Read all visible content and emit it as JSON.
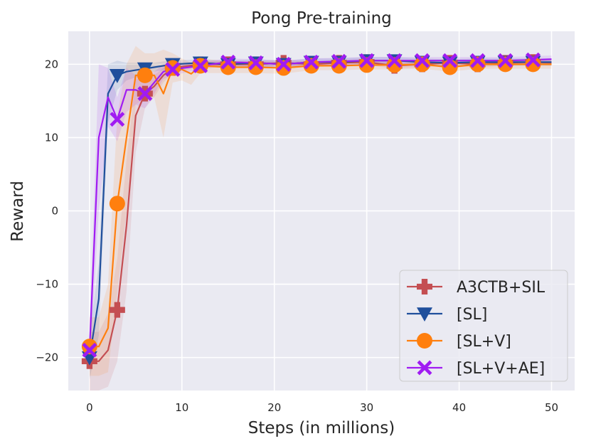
{
  "chart_data": {
    "type": "line",
    "title": "Pong Pre-training",
    "xlabel": "Steps (in millions)",
    "ylabel": "Reward",
    "xlim": [
      -2.3,
      52.5
    ],
    "ylim": [
      -24.5,
      24.5
    ],
    "xticks": [
      0,
      10,
      20,
      30,
      40,
      50
    ],
    "yticks": [
      -20,
      -10,
      0,
      10,
      20
    ],
    "xtick_labels": [
      "0",
      "10",
      "20",
      "30",
      "40",
      "50"
    ],
    "ytick_labels": [
      "−20",
      "−10",
      "0",
      "10",
      "20"
    ],
    "grid": true,
    "legend_position": "bottom-right",
    "series": [
      {
        "name": "A3CTB+SIL",
        "color": "#c44e52",
        "marker": "plus",
        "x": [
          0,
          1,
          2,
          3,
          4,
          5,
          6,
          7,
          8,
          9,
          12,
          15,
          18,
          21,
          24,
          27,
          30,
          33,
          36,
          39,
          42,
          45,
          48,
          50
        ],
        "y": [
          -20.5,
          -20.5,
          -19,
          -13.5,
          -2,
          13,
          16,
          17,
          18.5,
          19.5,
          20,
          20,
          20,
          20.2,
          20,
          20.2,
          20.3,
          19.8,
          20,
          20.2,
          20,
          20.2,
          20.3,
          20.2
        ],
        "band": [
          4,
          4,
          5,
          7,
          9,
          5,
          2,
          1.5,
          1,
          0.6,
          0.4,
          0.4,
          0.4,
          0.4,
          0.4,
          0.4,
          0.4,
          0.4,
          0.4,
          0.4,
          0.4,
          0.4,
          0.4,
          0.4
        ],
        "marker_x": [
          0,
          3,
          6,
          9,
          12,
          15,
          18,
          21,
          24,
          27,
          30,
          33,
          36,
          39,
          42,
          45,
          48
        ],
        "marker_y": [
          -20.5,
          -13.5,
          16,
          19.5,
          20,
          20,
          20,
          20.2,
          20,
          20.2,
          20.3,
          19.8,
          20,
          20.2,
          20,
          20.2,
          20.3
        ]
      },
      {
        "name": "[SL]",
        "color": "#1f4f9c",
        "marker": "triangle-down",
        "x": [
          0,
          1,
          2,
          3,
          4,
          5,
          6,
          7,
          8,
          9,
          12,
          15,
          18,
          21,
          24,
          27,
          30,
          33,
          36,
          39,
          42,
          45,
          48,
          50
        ],
        "y": [
          -20,
          -12,
          16,
          18.5,
          19,
          19.2,
          19.4,
          19.6,
          19.8,
          20,
          20.2,
          20,
          20.2,
          20,
          20.3,
          20.3,
          20.5,
          20.5,
          20.3,
          20.2,
          20.3,
          20.3,
          20.3,
          20.3
        ],
        "band": [
          3,
          5,
          4,
          2,
          1.2,
          1,
          0.8,
          0.6,
          0.6,
          0.5,
          0.5,
          0.5,
          0.5,
          0.5,
          0.5,
          0.5,
          0.5,
          0.5,
          0.5,
          0.5,
          0.5,
          0.5,
          0.5,
          0.5
        ],
        "marker_x": [
          0,
          3,
          6,
          9,
          12,
          15,
          18,
          21,
          24,
          27,
          30,
          33,
          36,
          39,
          42,
          45,
          48
        ],
        "marker_y": [
          -20,
          18.5,
          19.4,
          20,
          20.2,
          20,
          20.2,
          20,
          20.3,
          20.3,
          20.5,
          20.5,
          20.3,
          20.2,
          20.3,
          20.3,
          20.3
        ]
      },
      {
        "name": "[SL+V]",
        "color": "#ff7f0e",
        "marker": "circle",
        "x": [
          0,
          1,
          2,
          3,
          4,
          5,
          6,
          7,
          8,
          9,
          10,
          11,
          12,
          15,
          18,
          21,
          24,
          27,
          30,
          33,
          36,
          39,
          42,
          45,
          48,
          50
        ],
        "y": [
          -18.5,
          -18.5,
          -16,
          1,
          10,
          18.5,
          18.5,
          18.5,
          16,
          19.5,
          19.3,
          18.7,
          19.8,
          19.6,
          19.6,
          19.5,
          19.8,
          19.8,
          19.9,
          19.9,
          20,
          19.6,
          20,
          20,
          20,
          20
        ],
        "band": [
          4,
          4,
          6,
          12,
          10,
          4,
          3,
          3,
          6,
          2,
          1.5,
          1.5,
          1,
          0.8,
          0.8,
          0.8,
          0.6,
          0.6,
          0.6,
          0.6,
          0.6,
          0.6,
          0.6,
          0.6,
          0.6,
          0.6
        ],
        "marker_x": [
          0,
          3,
          6,
          9,
          12,
          15,
          18,
          21,
          24,
          27,
          30,
          33,
          36,
          39,
          42,
          45,
          48
        ],
        "marker_y": [
          -18.5,
          1,
          18.5,
          19.5,
          19.8,
          19.6,
          19.6,
          19.5,
          19.8,
          19.8,
          19.9,
          19.9,
          20,
          19.6,
          20,
          20,
          20
        ]
      },
      {
        "name": "[SL+V+AE]",
        "color": "#a01bf2",
        "marker": "x",
        "x": [
          0,
          1,
          2,
          3,
          4,
          5,
          6,
          7,
          8,
          9,
          12,
          15,
          18,
          21,
          24,
          27,
          30,
          33,
          36,
          39,
          42,
          45,
          48,
          50
        ],
        "y": [
          -19,
          10,
          15.5,
          12.5,
          16.5,
          16.5,
          16,
          17.5,
          19,
          19.3,
          19.8,
          20.3,
          20.2,
          20,
          20.3,
          20.4,
          20.5,
          20.5,
          20.5,
          20.5,
          20.5,
          20.5,
          20.6,
          20.7
        ],
        "band": [
          3,
          10,
          4,
          3,
          3,
          2,
          2,
          1.5,
          1,
          0.8,
          0.5,
          0.5,
          0.5,
          0.5,
          0.5,
          0.5,
          0.5,
          0.5,
          0.5,
          0.5,
          0.5,
          0.5,
          0.5,
          0.5
        ],
        "marker_x": [
          0,
          3,
          6,
          9,
          12,
          15,
          18,
          21,
          24,
          27,
          30,
          33,
          36,
          39,
          42,
          45,
          48
        ],
        "marker_y": [
          -19,
          12.5,
          16,
          19.3,
          19.8,
          20.3,
          20.2,
          20,
          20.3,
          20.4,
          20.5,
          20.5,
          20.5,
          20.5,
          20.5,
          20.5,
          20.6
        ]
      }
    ]
  }
}
